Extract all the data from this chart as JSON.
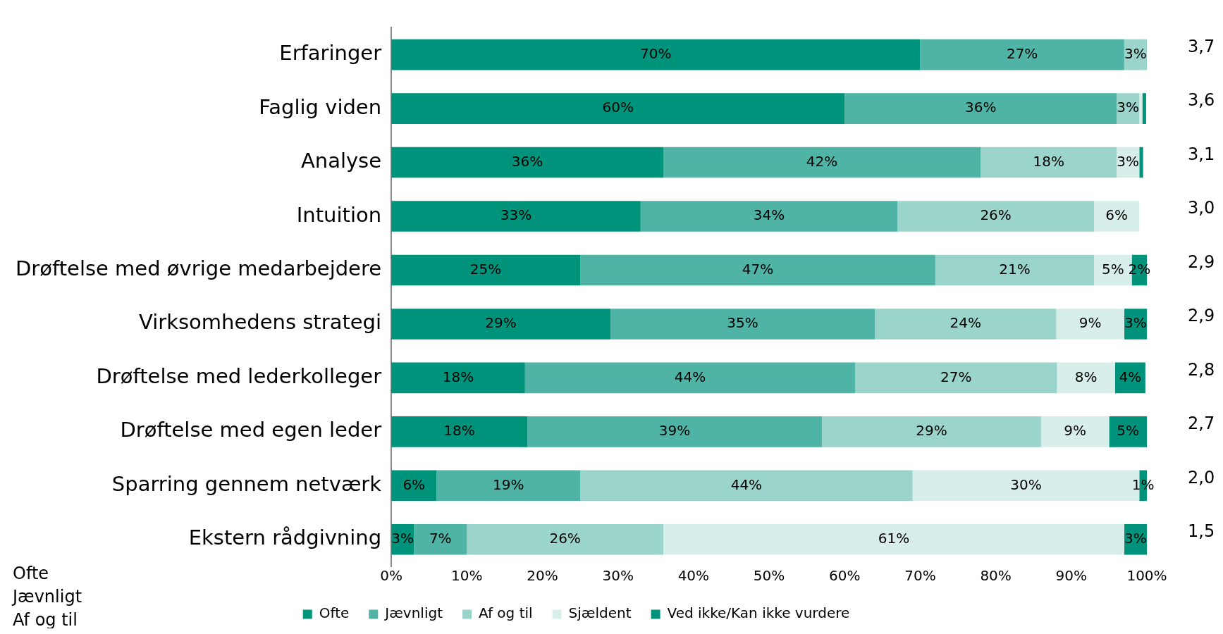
{
  "chart_data": {
    "type": "bar",
    "orientation": "horizontal",
    "stacked": true,
    "categories": [
      "Erfaringer",
      "Faglig viden",
      "Analyse",
      "Intuition",
      "Drøftelse med øvrige medarbejdere",
      "Virksomhedens strategi",
      "Drøftelse med lederkolleger",
      "Drøftelse med egen leder",
      "Sparring gennem netværk",
      "Ekstern rådgivning"
    ],
    "series": [
      {
        "name": "Ofte",
        "color": "#00937b",
        "values": [
          70,
          60,
          36,
          33,
          25,
          29,
          17.7,
          18,
          6,
          3
        ],
        "value_labels": [
          "70%",
          "60%",
          "36%",
          "33%",
          "25%",
          "29%",
          "18%",
          "18%",
          "6%",
          "3%"
        ]
      },
      {
        "name": "Jævnligt",
        "color": "#4fb3a5",
        "values": [
          27,
          36,
          42,
          34,
          47,
          35,
          43.7,
          39,
          19,
          7
        ],
        "value_labels": [
          "27%",
          "36%",
          "42%",
          "34%",
          "47%",
          "35%",
          "44%",
          "39%",
          "19%",
          "7%"
        ]
      },
      {
        "name": "Af og til",
        "color": "#9ad4ca",
        "values": [
          3,
          3,
          18,
          26,
          21,
          24,
          26.7,
          29,
          44,
          26
        ],
        "value_labels": [
          "3%",
          "3%",
          "18%",
          "26%",
          "21%",
          "24%",
          "27%",
          "29%",
          "44%",
          "26%"
        ]
      },
      {
        "name": "Sjældent",
        "color": "#d8eeea",
        "values": [
          0,
          0.4,
          3,
          6,
          5,
          9,
          7.7,
          9,
          30,
          61
        ],
        "value_labels": [
          null,
          null,
          "3%",
          "6%",
          "5%",
          "9%",
          "8%",
          "9%",
          "30%",
          "61%"
        ]
      },
      {
        "name": "Ved ikke/Kan ikke vurdere",
        "color": "#00937b",
        "values": [
          0,
          0.5,
          0.5,
          0,
          2,
          3,
          4,
          5,
          1,
          3
        ],
        "value_labels": [
          null,
          null,
          null,
          null,
          "2%",
          "3%",
          "4%",
          "5%",
          "1%",
          "3%"
        ]
      }
    ],
    "xlim": [
      0,
      100
    ],
    "xticks": [
      {
        "value": 0,
        "label": "0%"
      },
      {
        "value": 10,
        "label": "10%"
      },
      {
        "value": 20,
        "label": "20%"
      },
      {
        "value": 30,
        "label": "30%"
      },
      {
        "value": 40,
        "label": "40%"
      },
      {
        "value": 50,
        "label": "50%"
      },
      {
        "value": 60,
        "label": "60%"
      },
      {
        "value": 70,
        "label": "70%"
      },
      {
        "value": 80,
        "label": "80%"
      },
      {
        "value": 90,
        "label": "90%"
      },
      {
        "value": 100,
        "label": "100%"
      }
    ],
    "grid": false,
    "legend": "bottom",
    "annotations": [
      "3,7",
      "3,6",
      "3,1",
      "3,0",
      "2,9",
      "2,9",
      "2,8",
      "2,7",
      "2,0",
      "1,5",
      "Ofte",
      "Jævnligt",
      "Af og til"
    ]
  }
}
